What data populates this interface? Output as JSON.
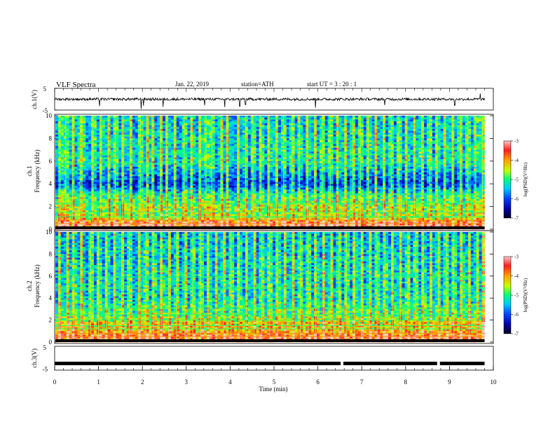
{
  "header": {
    "title": "VLF  Spectra",
    "date": "Jan. 22, 2019",
    "station": "station=ATH",
    "start": "start  UT  =   3  : 20 : 1"
  },
  "colors": {
    "background": "#ffffff",
    "spectrogram_low": "#000033",
    "spectrogram_mid": "#0044ff",
    "spectrogram_high": "#ff2020",
    "waveform": "#000000"
  },
  "chart_data": [
    {
      "type": "line",
      "name": "ch1-waveform",
      "ylabel": "ch.1(V)",
      "ylim": [
        -5,
        5
      ],
      "yticks": [
        "5",
        "-5"
      ],
      "xlim": [
        0,
        10
      ],
      "baseline": 0,
      "noise_amplitude": 0.6,
      "spikes": [
        {
          "t": 1.02,
          "v": -3.2
        },
        {
          "t": 1.97,
          "v": -4.5
        },
        {
          "t": 2.03,
          "v": -3.0
        },
        {
          "t": 2.47,
          "v": -3.5
        },
        {
          "t": 3.42,
          "v": -2.8
        },
        {
          "t": 3.88,
          "v": -3.6
        },
        {
          "t": 4.22,
          "v": -3.3
        },
        {
          "t": 4.35,
          "v": -2.5
        },
        {
          "t": 5.95,
          "v": -3.9
        },
        {
          "t": 7.52,
          "v": -2.7
        },
        {
          "t": 9.12,
          "v": -2.9
        },
        {
          "t": 9.7,
          "v": 2.6
        }
      ]
    },
    {
      "type": "heatmap",
      "name": "ch1-spectrogram",
      "ylabel": [
        "ch.1",
        "Frequency (kHz)"
      ],
      "xlim": [
        0,
        9.8
      ],
      "ylim": [
        0,
        10
      ],
      "yticks": [
        "0",
        "2",
        "4",
        "6",
        "8",
        "10"
      ],
      "colorbar": {
        "label": "log(PSD)(V²/Hz)",
        "range": [
          -7,
          -3
        ],
        "ticks": [
          "-3",
          "-4",
          "-5",
          "-6",
          "-7"
        ]
      },
      "noise_profile_khz": [
        [
          0,
          -4.0
        ],
        [
          0.5,
          -3.6
        ],
        [
          1.0,
          -4.8
        ],
        [
          2.0,
          -5.0
        ],
        [
          3.0,
          -5.4
        ],
        [
          4.0,
          -6.4
        ],
        [
          5.0,
          -5.9
        ],
        [
          6.0,
          -5.5
        ],
        [
          8.0,
          -5.6
        ],
        [
          10.0,
          -5.7
        ]
      ],
      "tonal_lines_khz": [
        0.2,
        0.5,
        0.8,
        1.1,
        1.5,
        2.3,
        3.1,
        5.8,
        6.6,
        7.6
      ],
      "sferics_times_min": [
        0.12,
        0.25,
        0.41,
        0.58,
        0.62,
        0.87,
        1.05,
        1.22,
        1.38,
        1.55,
        1.72,
        1.95,
        2.1,
        2.22,
        2.41,
        2.55,
        2.73,
        2.95,
        3.12,
        3.31,
        3.45,
        3.58,
        3.79,
        3.93,
        4.18,
        4.35,
        4.52,
        4.7,
        4.88,
        5.05,
        5.22,
        5.41,
        5.58,
        5.76,
        5.93,
        6.1,
        6.28,
        6.45,
        6.62,
        6.8,
        6.97,
        7.15,
        7.32,
        7.5,
        7.67,
        7.85,
        8.02,
        8.2,
        8.37,
        8.55,
        8.72,
        8.9,
        9.07,
        9.25,
        9.42,
        9.6,
        9.75
      ]
    },
    {
      "type": "heatmap",
      "name": "ch2-spectrogram",
      "ylabel": [
        "ch.2",
        "Frequency (kHz)"
      ],
      "xlim": [
        0,
        9.8
      ],
      "ylim": [
        0,
        10
      ],
      "yticks": [
        "0",
        "2",
        "4",
        "6",
        "8",
        "10"
      ],
      "colorbar": {
        "label": "log(PSD)(V²/Hz)",
        "range": [
          -7,
          -3
        ],
        "ticks": [
          "-3",
          "-4",
          "-5",
          "-6",
          "-7"
        ]
      },
      "noise_profile_khz": [
        [
          0,
          -4.2
        ],
        [
          0.4,
          -3.7
        ],
        [
          1.0,
          -4.4
        ],
        [
          1.8,
          -4.6
        ],
        [
          2.4,
          -5.2
        ],
        [
          3.0,
          -5.3
        ],
        [
          4.0,
          -5.6
        ],
        [
          5.0,
          -5.6
        ],
        [
          6.0,
          -5.6
        ],
        [
          8.0,
          -5.7
        ],
        [
          10.0,
          -5.8
        ]
      ],
      "tonal_lines_khz": [
        0.2,
        0.5,
        0.8,
        1.2,
        1.5,
        2.0,
        2.5,
        3.1,
        4.9,
        5.9
      ],
      "sferics_times_min": [
        0.1,
        0.28,
        0.43,
        0.6,
        0.82,
        1.0,
        1.18,
        1.36,
        1.53,
        1.7,
        1.92,
        2.08,
        2.25,
        2.43,
        2.6,
        2.78,
        2.97,
        3.15,
        3.33,
        3.5,
        3.68,
        3.85,
        4.02,
        4.2,
        4.37,
        4.55,
        4.72,
        4.9,
        5.08,
        5.25,
        5.43,
        5.6,
        5.78,
        5.95,
        6.13,
        6.3,
        6.48,
        6.65,
        6.83,
        7.0,
        7.18,
        7.35,
        7.53,
        7.7,
        7.88,
        8.05,
        8.23,
        8.4,
        8.58,
        8.75,
        8.93,
        9.1,
        9.28,
        9.45,
        9.63,
        9.77
      ]
    },
    {
      "type": "line",
      "name": "ch3-waveform",
      "ylabel": "ch.3(V)",
      "ylim": [
        -5,
        5
      ],
      "yticks": [
        "5",
        "-5"
      ],
      "xlim": [
        0,
        10
      ],
      "baseline": -2.2,
      "gaps_min": [
        6.55,
        8.75
      ],
      "xlabel": "Time  (min)",
      "xticks": [
        "0",
        "1",
        "2",
        "3",
        "4",
        "5",
        "6",
        "7",
        "8",
        "9",
        "10"
      ]
    }
  ]
}
